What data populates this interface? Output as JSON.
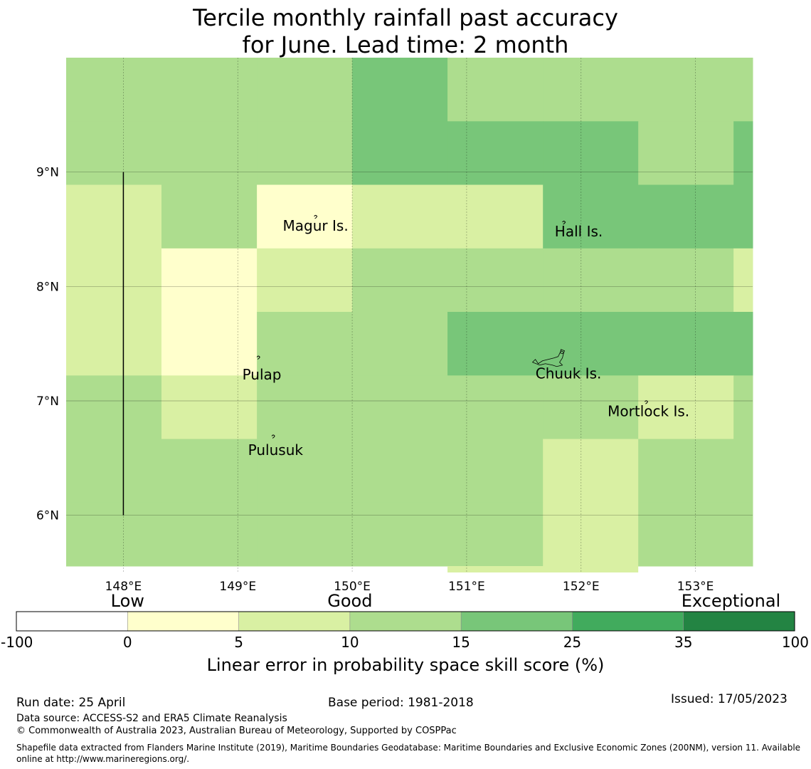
{
  "title": {
    "line1": "Tercile monthly rainfall past accuracy",
    "line2": "for June. Lead time: 2 month"
  },
  "map": {
    "lon_range": [
      147.5,
      153.5
    ],
    "lat_range": [
      5.5,
      10.0
    ],
    "lon_ticks": [
      {
        "value": 148,
        "label": "148°E"
      },
      {
        "value": 149,
        "label": "149°E"
      },
      {
        "value": 150,
        "label": "150°E"
      },
      {
        "value": 151,
        "label": "151°E"
      },
      {
        "value": 152,
        "label": "152°E"
      },
      {
        "value": 153,
        "label": "153°E"
      }
    ],
    "lat_ticks": [
      {
        "value": 9,
        "label": "9°N"
      },
      {
        "value": 8,
        "label": "8°N"
      },
      {
        "value": 7,
        "label": "7°N"
      },
      {
        "value": 6,
        "label": "6°N"
      }
    ],
    "grid_lons": [
      147.5,
      148.333,
      149.167,
      150.0,
      150.833,
      151.667,
      152.5,
      153.333
    ],
    "grid_lats": [
      10.0,
      9.444,
      8.889,
      8.333,
      7.778,
      7.222,
      6.667,
      6.111,
      5.556
    ],
    "cell_colors": [
      "#ffffff",
      "#ffffcc",
      "#d9f0a3",
      "#addd8e",
      "#78c679",
      "#41ab5d",
      "#238443"
    ],
    "cells": [
      [
        3,
        3,
        3,
        4,
        3,
        3,
        3,
        3
      ],
      [
        3,
        3,
        3,
        4,
        4,
        4,
        3,
        4
      ],
      [
        2,
        3,
        1,
        2,
        2,
        4,
        4,
        4
      ],
      [
        2,
        1,
        2,
        3,
        3,
        3,
        3,
        2
      ],
      [
        2,
        1,
        3,
        3,
        4,
        4,
        4,
        4
      ],
      [
        3,
        2,
        3,
        3,
        3,
        3,
        2,
        3
      ],
      [
        3,
        3,
        3,
        3,
        3,
        2,
        3,
        3
      ],
      [
        3,
        3,
        3,
        3,
        3,
        2,
        3,
        3
      ]
    ],
    "bottom_strip": {
      "lon": [
        150.833,
        152.5
      ],
      "lat_top": 5.556,
      "lat_bottom": 5.5,
      "color_index": 2
    },
    "boundary_line": {
      "lon": 148.0,
      "lat_from": 9.0,
      "lat_to": 6.0
    },
    "places": [
      {
        "name": "Magur Is.",
        "lon": 149.68,
        "lat": 8.6,
        "label_lon": 149.68,
        "label_lat": 8.53
      },
      {
        "name": "Hall Is.",
        "lon": 151.85,
        "lat": 8.55,
        "label_lon": 151.98,
        "label_lat": 8.48
      },
      {
        "name": "Pulap",
        "lon": 149.18,
        "lat": 7.37,
        "label_lon": 149.21,
        "label_lat": 7.23
      },
      {
        "name": "Chuuk Is.",
        "lon": 151.75,
        "lat": 7.35,
        "label_lon": 151.89,
        "label_lat": 7.24
      },
      {
        "name": "Mortlock Is.",
        "lon": 152.57,
        "lat": 6.98,
        "label_lon": 152.59,
        "label_lat": 6.91
      },
      {
        "name": "Pulusuk",
        "lon": 149.31,
        "lat": 6.68,
        "label_lon": 149.33,
        "label_lat": 6.57
      }
    ]
  },
  "legend": {
    "categories": [
      {
        "label": "Low",
        "at_index": 1
      },
      {
        "label": "Good",
        "at_index": 3
      },
      {
        "label": "Exceptional",
        "at_index": 6
      }
    ],
    "bins": [
      "#ffffff",
      "#ffffcc",
      "#d9f0a3",
      "#addd8e",
      "#78c679",
      "#41ab5d",
      "#238443"
    ],
    "tick_labels": [
      "-100",
      "0",
      "5",
      "10",
      "15",
      "25",
      "35",
      "100"
    ],
    "caption": "Linear error in probability space skill score (%)"
  },
  "footer": {
    "run_date": "Run date: 25 April",
    "base_period": "Base period: 1981-2018",
    "issued": "Issued: 17/05/2023",
    "data_source": "Data source: ACCESS-S2 and ERA5 Climate Reanalysis",
    "copyright": "© Commonwealth of Australia 2023, Australian Bureau of Meteorology, Supported by COSPPac",
    "shapefile": "Shapefile data extracted from Flanders Marine Institute (2019), Maritime Boundaries Geodatabase: Maritime Boundaries and Exclusive Economic Zones (200NM), version 11. Available online at http://www.marineregions.org/."
  }
}
